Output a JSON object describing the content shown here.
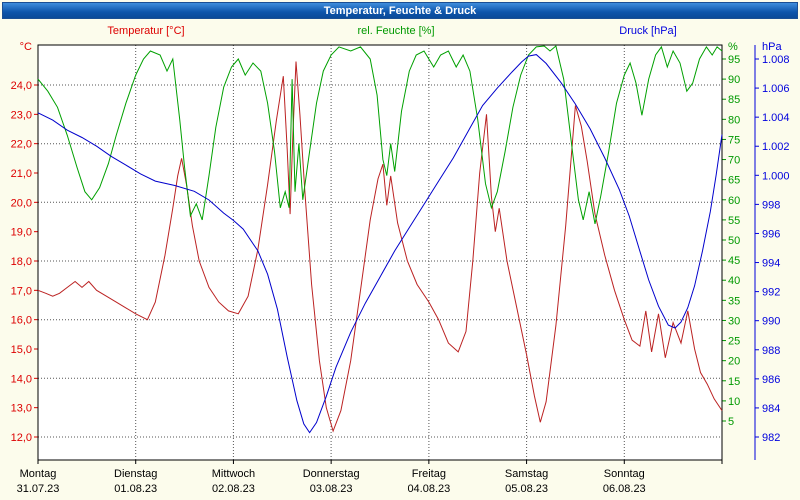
{
  "window": {
    "title": "Temperatur, Feuchte & Druck"
  },
  "legend": {
    "temperature": "Temperatur [°C]",
    "humidity": "rel. Feuchte [%]",
    "pressure": "Druck [hPa]"
  },
  "chart_data": {
    "type": "line",
    "title": "Temperatur, Feuchte & Druck",
    "grid": true,
    "legend_position": "top",
    "axes": {
      "temperature": {
        "unit": "°C",
        "color": "#dd0000",
        "line_color": "#bb2222",
        "side": "left",
        "tick_values": [
          24,
          23,
          22,
          21,
          20,
          19,
          18,
          17,
          16,
          15,
          14,
          13,
          12
        ],
        "tick_labels": [
          "24,0",
          "23,0",
          "22,0",
          "21,0",
          "20,0",
          "19,0",
          "18,0",
          "17,0",
          "16,0",
          "15,0",
          "14,0",
          "13,0",
          "12,0"
        ]
      },
      "humidity": {
        "unit": "%",
        "color": "#009900",
        "line_color": "#00a000",
        "side": "right-inner",
        "tick_values": [
          95,
          90,
          85,
          80,
          75,
          70,
          65,
          60,
          55,
          50,
          45,
          40,
          35,
          30,
          25,
          20,
          15,
          10,
          5
        ],
        "tick_labels": [
          "95",
          "90",
          "85",
          "80",
          "75",
          "70",
          "65",
          "60",
          "55",
          "50",
          "45",
          "40",
          "35",
          "30",
          "25",
          "20",
          "15",
          "10",
          "5"
        ]
      },
      "pressure": {
        "unit": "hPa",
        "color": "#0000dd",
        "line_color": "#0000cc",
        "side": "right-outer",
        "tick_values": [
          1008,
          1006,
          1004,
          1002,
          1000,
          998,
          996,
          994,
          992,
          990,
          988,
          986,
          984,
          982
        ],
        "tick_labels": [
          "1.008",
          "1.006",
          "1.004",
          "1.002",
          "1.000",
          "998",
          "996",
          "994",
          "992",
          "990",
          "988",
          "986",
          "984",
          "982"
        ]
      }
    },
    "x_axis": {
      "unit": "days, t=0 at first tick",
      "days": [
        {
          "name": "Montag",
          "date": "31.07.23"
        },
        {
          "name": "Dienstag",
          "date": "01.08.23"
        },
        {
          "name": "Mittwoch",
          "date": "02.08.23"
        },
        {
          "name": "Donnerstag",
          "date": "03.08.23"
        },
        {
          "name": "Freitag",
          "date": "04.08.23"
        },
        {
          "name": "Samstag",
          "date": "05.08.23"
        },
        {
          "name": "Sonntag",
          "date": "06.08.23"
        }
      ]
    },
    "series": [
      {
        "key": "temperature",
        "name": "Temperatur [°C]",
        "axis": "temp",
        "color": "#bb2222",
        "points": [
          [
            0,
            17.0
          ],
          [
            0.08,
            16.9
          ],
          [
            0.15,
            16.8
          ],
          [
            0.22,
            16.9
          ],
          [
            0.3,
            17.1
          ],
          [
            0.38,
            17.3
          ],
          [
            0.45,
            17.1
          ],
          [
            0.52,
            17.3
          ],
          [
            0.6,
            17.0
          ],
          [
            0.7,
            16.8
          ],
          [
            0.8,
            16.6
          ],
          [
            0.9,
            16.4
          ],
          [
            1.0,
            16.2
          ],
          [
            1.12,
            16.0
          ],
          [
            1.2,
            16.6
          ],
          [
            1.3,
            18.2
          ],
          [
            1.38,
            19.8
          ],
          [
            1.43,
            20.9
          ],
          [
            1.47,
            21.5
          ],
          [
            1.52,
            20.6
          ],
          [
            1.58,
            19.2
          ],
          [
            1.65,
            18.0
          ],
          [
            1.75,
            17.1
          ],
          [
            1.85,
            16.6
          ],
          [
            1.95,
            16.3
          ],
          [
            2.05,
            16.2
          ],
          [
            2.15,
            16.8
          ],
          [
            2.25,
            18.4
          ],
          [
            2.35,
            20.6
          ],
          [
            2.44,
            22.8
          ],
          [
            2.51,
            24.3
          ],
          [
            2.55,
            21.8
          ],
          [
            2.58,
            19.6
          ],
          [
            2.61,
            22.4
          ],
          [
            2.64,
            24.8
          ],
          [
            2.68,
            23.0
          ],
          [
            2.73,
            20.4
          ],
          [
            2.8,
            17.2
          ],
          [
            2.88,
            14.6
          ],
          [
            2.95,
            13.0
          ],
          [
            3.02,
            12.2
          ],
          [
            3.1,
            12.9
          ],
          [
            3.2,
            14.6
          ],
          [
            3.3,
            17.0
          ],
          [
            3.4,
            19.4
          ],
          [
            3.48,
            20.8
          ],
          [
            3.53,
            21.3
          ],
          [
            3.57,
            19.9
          ],
          [
            3.61,
            20.9
          ],
          [
            3.68,
            19.3
          ],
          [
            3.78,
            18.0
          ],
          [
            3.88,
            17.2
          ],
          [
            4.0,
            16.6
          ],
          [
            4.1,
            16.0
          ],
          [
            4.2,
            15.2
          ],
          [
            4.3,
            14.9
          ],
          [
            4.38,
            15.6
          ],
          [
            4.45,
            18.0
          ],
          [
            4.52,
            21.0
          ],
          [
            4.59,
            23.0
          ],
          [
            4.64,
            20.2
          ],
          [
            4.68,
            19.0
          ],
          [
            4.72,
            19.8
          ],
          [
            4.8,
            18.0
          ],
          [
            4.9,
            16.4
          ],
          [
            5.0,
            14.8
          ],
          [
            5.08,
            13.4
          ],
          [
            5.14,
            12.5
          ],
          [
            5.2,
            13.2
          ],
          [
            5.3,
            15.8
          ],
          [
            5.4,
            19.2
          ],
          [
            5.5,
            23.3
          ],
          [
            5.56,
            22.6
          ],
          [
            5.62,
            21.4
          ],
          [
            5.7,
            19.6
          ],
          [
            5.8,
            18.2
          ],
          [
            5.9,
            17.0
          ],
          [
            6.0,
            16.0
          ],
          [
            6.08,
            15.3
          ],
          [
            6.16,
            15.1
          ],
          [
            6.22,
            16.3
          ],
          [
            6.28,
            14.9
          ],
          [
            6.35,
            16.2
          ],
          [
            6.42,
            14.7
          ],
          [
            6.5,
            15.9
          ],
          [
            6.58,
            15.2
          ],
          [
            6.65,
            16.3
          ],
          [
            6.72,
            15.0
          ],
          [
            6.78,
            14.2
          ],
          [
            6.85,
            13.8
          ],
          [
            6.92,
            13.3
          ],
          [
            7.0,
            12.9
          ]
        ]
      },
      {
        "key": "humidity",
        "name": "rel. Feuchte [%]",
        "axis": "hum",
        "color": "#00a000",
        "points": [
          [
            0,
            90
          ],
          [
            0.1,
            87
          ],
          [
            0.2,
            83
          ],
          [
            0.3,
            76
          ],
          [
            0.4,
            68
          ],
          [
            0.48,
            62
          ],
          [
            0.55,
            60
          ],
          [
            0.63,
            63
          ],
          [
            0.72,
            69
          ],
          [
            0.8,
            76
          ],
          [
            0.9,
            84
          ],
          [
            1.0,
            91
          ],
          [
            1.08,
            95
          ],
          [
            1.15,
            97
          ],
          [
            1.25,
            96
          ],
          [
            1.32,
            92
          ],
          [
            1.38,
            95
          ],
          [
            1.45,
            80
          ],
          [
            1.5,
            68
          ],
          [
            1.56,
            56
          ],
          [
            1.62,
            59
          ],
          [
            1.68,
            55
          ],
          [
            1.75,
            66
          ],
          [
            1.82,
            78
          ],
          [
            1.9,
            88
          ],
          [
            1.98,
            93
          ],
          [
            2.05,
            95
          ],
          [
            2.12,
            91
          ],
          [
            2.2,
            94
          ],
          [
            2.28,
            92
          ],
          [
            2.35,
            84
          ],
          [
            2.42,
            72
          ],
          [
            2.48,
            58
          ],
          [
            2.53,
            62
          ],
          [
            2.57,
            58
          ],
          [
            2.6,
            90
          ],
          [
            2.63,
            62
          ],
          [
            2.67,
            74
          ],
          [
            2.71,
            60
          ],
          [
            2.78,
            72
          ],
          [
            2.85,
            84
          ],
          [
            2.92,
            92
          ],
          [
            3.0,
            96
          ],
          [
            3.08,
            98
          ],
          [
            3.2,
            97
          ],
          [
            3.3,
            98
          ],
          [
            3.4,
            95
          ],
          [
            3.47,
            86
          ],
          [
            3.53,
            70
          ],
          [
            3.57,
            66
          ],
          [
            3.61,
            74
          ],
          [
            3.65,
            67
          ],
          [
            3.72,
            82
          ],
          [
            3.8,
            92
          ],
          [
            3.87,
            96
          ],
          [
            3.95,
            97
          ],
          [
            4.05,
            93
          ],
          [
            4.12,
            96
          ],
          [
            4.2,
            97
          ],
          [
            4.28,
            93
          ],
          [
            4.35,
            96
          ],
          [
            4.42,
            92
          ],
          [
            4.5,
            80
          ],
          [
            4.58,
            64
          ],
          [
            4.64,
            58
          ],
          [
            4.7,
            62
          ],
          [
            4.78,
            72
          ],
          [
            4.86,
            83
          ],
          [
            4.94,
            91
          ],
          [
            5.02,
            96
          ],
          [
            5.1,
            98
          ],
          [
            5.18,
            99
          ],
          [
            5.24,
            97
          ],
          [
            5.3,
            99
          ],
          [
            5.38,
            90
          ],
          [
            5.46,
            74
          ],
          [
            5.53,
            60
          ],
          [
            5.58,
            55
          ],
          [
            5.64,
            62
          ],
          [
            5.7,
            54
          ],
          [
            5.76,
            61
          ],
          [
            5.84,
            72
          ],
          [
            5.92,
            84
          ],
          [
            6.0,
            91
          ],
          [
            6.06,
            94
          ],
          [
            6.12,
            89
          ],
          [
            6.18,
            81
          ],
          [
            6.25,
            90
          ],
          [
            6.32,
            96
          ],
          [
            6.38,
            98
          ],
          [
            6.44,
            93
          ],
          [
            6.5,
            97
          ],
          [
            6.57,
            94
          ],
          [
            6.64,
            87
          ],
          [
            6.7,
            89
          ],
          [
            6.77,
            95
          ],
          [
            6.84,
            98
          ],
          [
            6.9,
            96
          ],
          [
            6.95,
            98
          ],
          [
            7.0,
            97
          ]
        ]
      },
      {
        "key": "pressure",
        "name": "Druck [hPa]",
        "axis": "pres",
        "color": "#0000cc",
        "points": [
          [
            0,
            1004.3
          ],
          [
            0.15,
            1003.8
          ],
          [
            0.3,
            1003.1
          ],
          [
            0.45,
            1002.6
          ],
          [
            0.6,
            1002.0
          ],
          [
            0.75,
            1001.3
          ],
          [
            0.9,
            1000.7
          ],
          [
            1.05,
            1000.1
          ],
          [
            1.2,
            999.6
          ],
          [
            1.4,
            999.3
          ],
          [
            1.6,
            998.9
          ],
          [
            1.75,
            998.3
          ],
          [
            1.9,
            997.4
          ],
          [
            2.0,
            996.9
          ],
          [
            2.1,
            996.3
          ],
          [
            2.25,
            994.8
          ],
          [
            2.35,
            993.2
          ],
          [
            2.45,
            990.8
          ],
          [
            2.55,
            987.5
          ],
          [
            2.65,
            984.5
          ],
          [
            2.72,
            982.9
          ],
          [
            2.78,
            982.3
          ],
          [
            2.85,
            983.0
          ],
          [
            2.95,
            984.8
          ],
          [
            3.05,
            986.8
          ],
          [
            3.2,
            989.2
          ],
          [
            3.35,
            991.2
          ],
          [
            3.5,
            993.0
          ],
          [
            3.65,
            994.8
          ],
          [
            3.8,
            996.4
          ],
          [
            3.95,
            998.0
          ],
          [
            4.1,
            999.6
          ],
          [
            4.25,
            1001.2
          ],
          [
            4.4,
            1003.0
          ],
          [
            4.55,
            1004.8
          ],
          [
            4.7,
            1006.0
          ],
          [
            4.85,
            1007.1
          ],
          [
            4.95,
            1007.8
          ],
          [
            5.02,
            1008.2
          ],
          [
            5.1,
            1008.3
          ],
          [
            5.2,
            1007.7
          ],
          [
            5.35,
            1006.4
          ],
          [
            5.5,
            1004.9
          ],
          [
            5.65,
            1003.2
          ],
          [
            5.8,
            1001.2
          ],
          [
            5.95,
            999.0
          ],
          [
            6.05,
            997.2
          ],
          [
            6.15,
            995.0
          ],
          [
            6.25,
            992.8
          ],
          [
            6.35,
            991.0
          ],
          [
            6.45,
            989.7
          ],
          [
            6.52,
            989.5
          ],
          [
            6.58,
            989.9
          ],
          [
            6.65,
            990.9
          ],
          [
            6.72,
            992.4
          ],
          [
            6.8,
            994.8
          ],
          [
            6.88,
            997.5
          ],
          [
            6.94,
            1000.0
          ],
          [
            7.0,
            1002.8
          ]
        ]
      }
    ]
  }
}
